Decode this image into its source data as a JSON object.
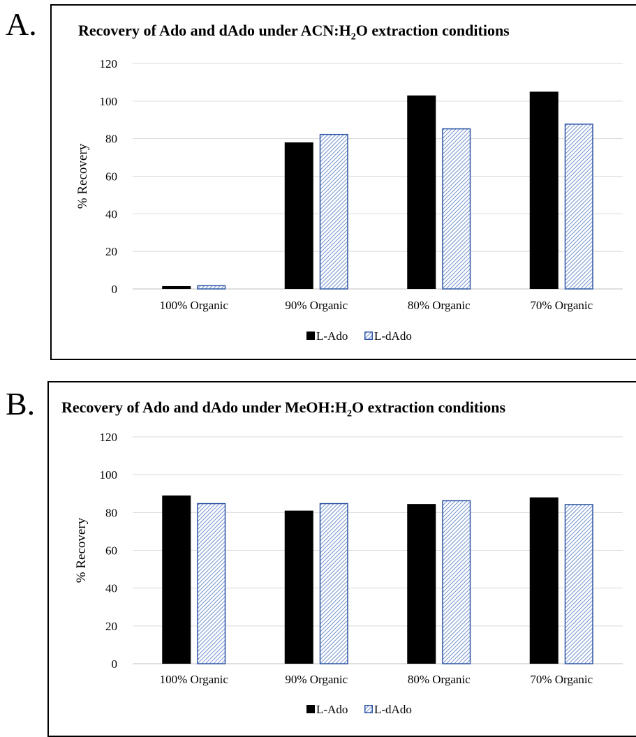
{
  "panels": [
    {
      "letter": "A.",
      "title_main": "Recovery of Ado and dAdo under ACN:H",
      "title_sub": "2",
      "title_tail": "O extraction conditions"
    },
    {
      "letter": "B.",
      "title_main": "Recovery of Ado and dAdo under MeOH:H",
      "title_sub": "2",
      "title_tail": "O extraction conditions"
    }
  ],
  "colors": {
    "l_ado": "#000000",
    "l_dado_stroke": "#2f55a4",
    "l_dado_hatch": "#6f8fcf",
    "grid": "#d9d9d9"
  },
  "chart_data": [
    {
      "type": "bar",
      "title": "Recovery of Ado and dAdo under ACN:H2O extraction conditions",
      "categories": [
        "100% Organic",
        "90% Organic",
        "80% Organic",
        "70% Organic"
      ],
      "series": [
        {
          "name": "L-Ado",
          "values": [
            1.5,
            78,
            103,
            105
          ]
        },
        {
          "name": "L-dAdo",
          "values": [
            2,
            82.5,
            85.5,
            88
          ]
        }
      ],
      "ylabel": "% Recovery",
      "ylim": [
        0,
        120
      ],
      "yticks": [
        0,
        20,
        40,
        60,
        80,
        100,
        120
      ],
      "grid": true,
      "legend": "bottom"
    },
    {
      "type": "bar",
      "title": "Recovery of Ado and dAdo under MeOH:H2O extraction conditions",
      "categories": [
        "100% Organic",
        "90% Organic",
        "80% Organic",
        "70% Organic"
      ],
      "series": [
        {
          "name": "L-Ado",
          "values": [
            89,
            81,
            84.5,
            88
          ]
        },
        {
          "name": "L-dAdo",
          "values": [
            85,
            85,
            86.5,
            84.5
          ]
        }
      ],
      "ylabel": "% Recovery",
      "ylim": [
        0,
        120
      ],
      "yticks": [
        0,
        20,
        40,
        60,
        80,
        100,
        120
      ],
      "grid": true,
      "legend": "bottom"
    }
  ]
}
